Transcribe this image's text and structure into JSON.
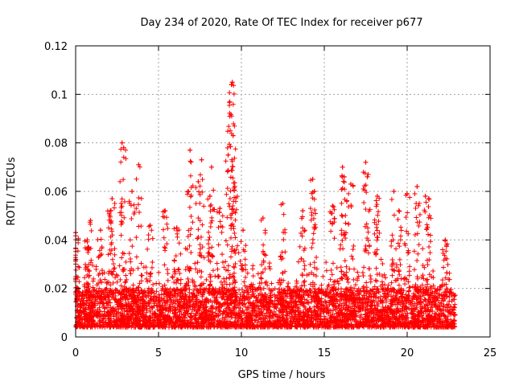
{
  "chart_data": {
    "type": "scatter",
    "title": "Day 234 of 2020, Rate Of TEC Index for receiver p677",
    "xlabel": "GPS time / hours",
    "ylabel": "ROTI / TECUs",
    "xlim": [
      0,
      25
    ],
    "ylim": [
      0,
      0.12
    ],
    "xticks": [
      0,
      5,
      10,
      15,
      20,
      25
    ],
    "xtick_labels": [
      "0",
      "5",
      "10",
      "15",
      "20",
      "25"
    ],
    "yticks": [
      0,
      0.02,
      0.04,
      0.06,
      0.08,
      0.1,
      0.12
    ],
    "ytick_labels": [
      "0",
      "0.02",
      "0.04",
      "0.06",
      "0.08",
      "0.1",
      "0.12"
    ],
    "grid": true,
    "marker": "+",
    "color": "#ff0000",
    "x_range_observed": [
      0,
      22.9
    ],
    "baseline_band": [
      0.004,
      0.02
    ],
    "spikes": [
      {
        "x": 0.0,
        "y": 0.043
      },
      {
        "x": 0.7,
        "y": 0.04
      },
      {
        "x": 0.9,
        "y": 0.048
      },
      {
        "x": 1.5,
        "y": 0.044
      },
      {
        "x": 2.1,
        "y": 0.052
      },
      {
        "x": 2.2,
        "y": 0.057
      },
      {
        "x": 2.8,
        "y": 0.08
      },
      {
        "x": 2.9,
        "y": 0.078
      },
      {
        "x": 3.4,
        "y": 0.06
      },
      {
        "x": 3.8,
        "y": 0.071
      },
      {
        "x": 4.5,
        "y": 0.046
      },
      {
        "x": 5.4,
        "y": 0.052
      },
      {
        "x": 6.1,
        "y": 0.045
      },
      {
        "x": 6.8,
        "y": 0.06
      },
      {
        "x": 6.9,
        "y": 0.077
      },
      {
        "x": 7.4,
        "y": 0.064
      },
      {
        "x": 7.6,
        "y": 0.073
      },
      {
        "x": 8.1,
        "y": 0.058
      },
      {
        "x": 8.2,
        "y": 0.07
      },
      {
        "x": 8.7,
        "y": 0.053
      },
      {
        "x": 9.2,
        "y": 0.075
      },
      {
        "x": 9.3,
        "y": 0.091
      },
      {
        "x": 9.4,
        "y": 0.104
      },
      {
        "x": 9.45,
        "y": 0.105
      },
      {
        "x": 9.5,
        "y": 0.083
      },
      {
        "x": 9.6,
        "y": 0.062
      },
      {
        "x": 10.1,
        "y": 0.044
      },
      {
        "x": 11.3,
        "y": 0.049
      },
      {
        "x": 12.5,
        "y": 0.055
      },
      {
        "x": 13.7,
        "y": 0.052
      },
      {
        "x": 14.3,
        "y": 0.065
      },
      {
        "x": 14.4,
        "y": 0.06
      },
      {
        "x": 15.5,
        "y": 0.054
      },
      {
        "x": 16.1,
        "y": 0.07
      },
      {
        "x": 16.2,
        "y": 0.066
      },
      {
        "x": 16.6,
        "y": 0.063
      },
      {
        "x": 17.5,
        "y": 0.072
      },
      {
        "x": 17.6,
        "y": 0.066
      },
      {
        "x": 18.2,
        "y": 0.058
      },
      {
        "x": 19.2,
        "y": 0.06
      },
      {
        "x": 19.5,
        "y": 0.052
      },
      {
        "x": 20.0,
        "y": 0.059
      },
      {
        "x": 20.6,
        "y": 0.062
      },
      {
        "x": 21.1,
        "y": 0.058
      },
      {
        "x": 21.3,
        "y": 0.057
      },
      {
        "x": 22.3,
        "y": 0.04
      }
    ]
  }
}
